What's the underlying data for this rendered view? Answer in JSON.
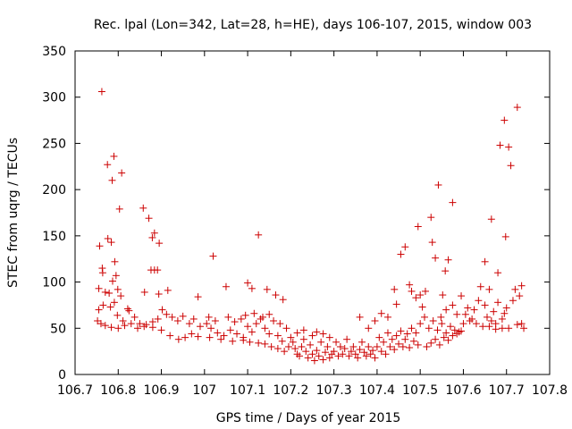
{
  "chart_data": {
    "type": "scatter",
    "title": "Rec. lpal (Lon=342, Lat=28, h=HE), days 106-107, 2015, window 003",
    "xlabel": "GPS time / Days of year 2015",
    "ylabel": "STEC from uqrg / TECUs",
    "xlim": [
      106.7,
      107.8
    ],
    "ylim": [
      0,
      350
    ],
    "xticks": [
      "106.7",
      "106.8",
      "106.9",
      "107",
      "107.1",
      "107.2",
      "107.3",
      "107.4",
      "107.5",
      "107.6",
      "107.7",
      "107.8"
    ],
    "yticks": [
      "0",
      "50",
      "100",
      "150",
      "200",
      "250",
      "300",
      "350"
    ],
    "marker": "+",
    "color": "#cc0000",
    "grid": false,
    "points": [
      [
        106.762,
        306
      ],
      [
        106.775,
        227
      ],
      [
        106.79,
        236
      ],
      [
        106.786,
        210
      ],
      [
        106.808,
        218
      ],
      [
        106.757,
        139
      ],
      [
        106.776,
        147
      ],
      [
        106.784,
        143
      ],
      [
        106.792,
        122
      ],
      [
        106.803,
        179
      ],
      [
        106.858,
        180
      ],
      [
        106.871,
        169
      ],
      [
        106.884,
        153
      ],
      [
        106.879,
        148
      ],
      [
        106.895,
        142
      ],
      [
        106.891,
        113
      ],
      [
        107.02,
        128
      ],
      [
        107.125,
        151
      ],
      [
        106.755,
        93
      ],
      [
        106.763,
        115
      ],
      [
        106.764,
        110
      ],
      [
        106.77,
        89
      ],
      [
        106.779,
        88
      ],
      [
        106.787,
        101
      ],
      [
        106.795,
        107
      ],
      [
        106.799,
        92
      ],
      [
        106.806,
        85
      ],
      [
        106.822,
        71
      ],
      [
        106.861,
        89
      ],
      [
        106.876,
        113
      ],
      [
        106.884,
        113
      ],
      [
        106.894,
        87
      ],
      [
        106.915,
        91
      ],
      [
        106.985,
        84
      ],
      [
        107.05,
        95
      ],
      [
        107.1,
        99
      ],
      [
        107.11,
        93
      ],
      [
        107.145,
        92
      ],
      [
        107.182,
        81
      ],
      [
        107.165,
        86
      ],
      [
        106.755,
        70
      ],
      [
        106.765,
        75
      ],
      [
        106.782,
        73
      ],
      [
        106.791,
        78
      ],
      [
        106.798,
        64
      ],
      [
        106.811,
        58
      ],
      [
        106.825,
        69
      ],
      [
        106.838,
        62
      ],
      [
        106.85,
        55
      ],
      [
        106.865,
        54
      ],
      [
        106.88,
        57
      ],
      [
        106.892,
        60
      ],
      [
        106.902,
        70
      ],
      [
        106.912,
        65
      ],
      [
        106.925,
        62
      ],
      [
        106.938,
        58
      ],
      [
        106.95,
        63
      ],
      [
        106.965,
        55
      ],
      [
        106.975,
        60
      ],
      [
        106.99,
        52
      ],
      [
        106.752,
        58
      ],
      [
        106.76,
        55
      ],
      [
        106.77,
        53
      ],
      [
        106.784,
        51
      ],
      [
        106.8,
        50
      ],
      [
        106.815,
        53
      ],
      [
        106.83,
        55
      ],
      [
        106.845,
        50
      ],
      [
        106.86,
        52
      ],
      [
        106.88,
        51
      ],
      [
        106.9,
        48
      ],
      [
        106.92,
        42
      ],
      [
        106.94,
        38
      ],
      [
        106.955,
        40
      ],
      [
        106.97,
        44
      ],
      [
        106.985,
        41
      ],
      [
        107.005,
        55
      ],
      [
        107.015,
        50
      ],
      [
        107.03,
        45
      ],
      [
        107.045,
        42
      ],
      [
        107.06,
        48
      ],
      [
        107.075,
        44
      ],
      [
        107.09,
        40
      ],
      [
        107.1,
        52
      ],
      [
        107.11,
        46
      ],
      [
        107.12,
        55
      ],
      [
        107.13,
        60
      ],
      [
        107.14,
        50
      ],
      [
        107.15,
        44
      ],
      [
        107.16,
        58
      ],
      [
        107.17,
        42
      ],
      [
        107.18,
        36
      ],
      [
        107.01,
        62
      ],
      [
        107.025,
        58
      ],
      [
        107.055,
        62
      ],
      [
        107.07,
        57
      ],
      [
        107.085,
        60
      ],
      [
        107.095,
        64
      ],
      [
        107.115,
        66
      ],
      [
        107.135,
        62
      ],
      [
        107.15,
        65
      ],
      [
        107.175,
        55
      ],
      [
        107.19,
        50
      ],
      [
        107.012,
        40
      ],
      [
        107.038,
        38
      ],
      [
        107.065,
        36
      ],
      [
        107.09,
        37
      ],
      [
        107.105,
        35
      ],
      [
        107.125,
        34
      ],
      [
        107.14,
        33
      ],
      [
        107.155,
        30
      ],
      [
        107.17,
        28
      ],
      [
        107.185,
        25
      ],
      [
        107.195,
        30
      ],
      [
        107.2,
        40
      ],
      [
        107.205,
        35
      ],
      [
        107.21,
        28
      ],
      [
        107.215,
        22
      ],
      [
        107.22,
        20
      ],
      [
        107.225,
        30
      ],
      [
        107.23,
        38
      ],
      [
        107.235,
        25
      ],
      [
        107.24,
        18
      ],
      [
        107.245,
        32
      ],
      [
        107.25,
        22
      ],
      [
        107.255,
        15
      ],
      [
        107.26,
        26
      ],
      [
        107.265,
        20
      ],
      [
        107.27,
        35
      ],
      [
        107.275,
        16
      ],
      [
        107.28,
        24
      ],
      [
        107.285,
        30
      ],
      [
        107.29,
        18
      ],
      [
        107.295,
        22
      ],
      [
        107.23,
        48
      ],
      [
        107.26,
        46
      ],
      [
        107.25,
        42
      ],
      [
        107.275,
        44
      ],
      [
        107.215,
        45
      ],
      [
        107.29,
        40
      ],
      [
        107.3,
        25
      ],
      [
        107.305,
        35
      ],
      [
        107.31,
        20
      ],
      [
        107.315,
        30
      ],
      [
        107.32,
        22
      ],
      [
        107.325,
        28
      ],
      [
        107.33,
        38
      ],
      [
        107.335,
        20
      ],
      [
        107.34,
        25
      ],
      [
        107.345,
        30
      ],
      [
        107.35,
        22
      ],
      [
        107.355,
        18
      ],
      [
        107.36,
        27
      ],
      [
        107.365,
        35
      ],
      [
        107.37,
        24
      ],
      [
        107.375,
        20
      ],
      [
        107.38,
        30
      ],
      [
        107.385,
        22
      ],
      [
        107.39,
        26
      ],
      [
        107.395,
        18
      ],
      [
        107.36,
        62
      ],
      [
        107.38,
        50
      ],
      [
        107.395,
        58
      ],
      [
        107.41,
        66
      ],
      [
        107.425,
        62
      ],
      [
        107.4,
        30
      ],
      [
        107.405,
        40
      ],
      [
        107.41,
        25
      ],
      [
        107.415,
        35
      ],
      [
        107.42,
        22
      ],
      [
        107.425,
        45
      ],
      [
        107.43,
        30
      ],
      [
        107.435,
        38
      ],
      [
        107.44,
        27
      ],
      [
        107.445,
        42
      ],
      [
        107.45,
        33
      ],
      [
        107.455,
        47
      ],
      [
        107.46,
        30
      ],
      [
        107.465,
        38
      ],
      [
        107.47,
        44
      ],
      [
        107.475,
        29
      ],
      [
        107.48,
        50
      ],
      [
        107.485,
        36
      ],
      [
        107.49,
        45
      ],
      [
        107.495,
        32
      ],
      [
        107.44,
        92
      ],
      [
        107.445,
        76
      ],
      [
        107.455,
        130
      ],
      [
        107.465,
        138
      ],
      [
        107.475,
        97
      ],
      [
        107.48,
        90
      ],
      [
        107.49,
        83
      ],
      [
        107.495,
        160
      ],
      [
        107.5,
        86
      ],
      [
        107.505,
        73
      ],
      [
        107.512,
        90
      ],
      [
        107.5,
        55
      ],
      [
        107.51,
        62
      ],
      [
        107.52,
        50
      ],
      [
        107.53,
        58
      ],
      [
        107.54,
        48
      ],
      [
        107.55,
        55
      ],
      [
        107.56,
        45
      ],
      [
        107.57,
        52
      ],
      [
        107.58,
        48
      ],
      [
        107.59,
        46
      ],
      [
        107.515,
        30
      ],
      [
        107.525,
        34
      ],
      [
        107.535,
        38
      ],
      [
        107.545,
        32
      ],
      [
        107.555,
        40
      ],
      [
        107.565,
        37
      ],
      [
        107.575,
        42
      ],
      [
        107.585,
        44
      ],
      [
        107.595,
        47
      ],
      [
        107.525,
        170
      ],
      [
        107.528,
        143
      ],
      [
        107.535,
        126
      ],
      [
        107.542,
        205
      ],
      [
        107.552,
        86
      ],
      [
        107.558,
        112
      ],
      [
        107.565,
        124
      ],
      [
        107.575,
        186
      ],
      [
        107.56,
        70
      ],
      [
        107.548,
        62
      ],
      [
        107.575,
        75
      ],
      [
        107.585,
        65
      ],
      [
        107.595,
        85
      ],
      [
        107.6,
        55
      ],
      [
        107.605,
        65
      ],
      [
        107.61,
        72
      ],
      [
        107.615,
        58
      ],
      [
        107.62,
        60
      ],
      [
        107.625,
        70
      ],
      [
        107.63,
        55
      ],
      [
        107.635,
        80
      ],
      [
        107.64,
        95
      ],
      [
        107.645,
        52
      ],
      [
        107.65,
        75
      ],
      [
        107.655,
        62
      ],
      [
        107.66,
        92
      ],
      [
        107.665,
        58
      ],
      [
        107.67,
        68
      ],
      [
        107.675,
        55
      ],
      [
        107.68,
        78
      ],
      [
        107.69,
        60
      ],
      [
        107.695,
        66
      ],
      [
        107.7,
        72
      ],
      [
        107.65,
        122
      ],
      [
        107.665,
        168
      ],
      [
        107.68,
        110
      ],
      [
        107.685,
        248
      ],
      [
        107.695,
        275
      ],
      [
        107.698,
        149
      ],
      [
        107.705,
        246
      ],
      [
        107.71,
        226
      ],
      [
        107.715,
        80
      ],
      [
        107.72,
        92
      ],
      [
        107.725,
        289
      ],
      [
        107.73,
        85
      ],
      [
        107.735,
        96
      ],
      [
        107.735,
        55
      ],
      [
        107.74,
        50
      ],
      [
        107.705,
        50
      ],
      [
        107.725,
        54
      ],
      [
        107.69,
        50
      ],
      [
        107.675,
        49
      ],
      [
        107.66,
        52
      ]
    ]
  }
}
